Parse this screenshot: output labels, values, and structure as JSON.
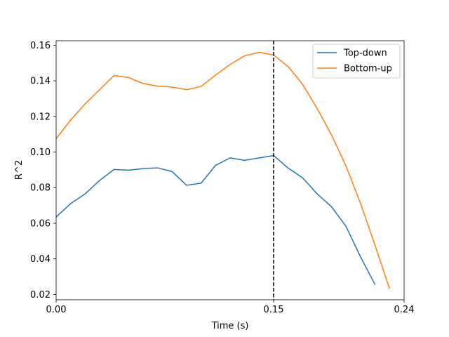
{
  "chart_data": {
    "type": "line",
    "title": "",
    "xlabel": "Time (s)",
    "ylabel": "R^2",
    "xlim": [
      0.0,
      0.24
    ],
    "ylim": [
      0.017,
      0.1625
    ],
    "xticks": [
      0.0,
      0.15,
      0.24
    ],
    "xtick_labels": [
      "0.00",
      "0.15",
      "0.24"
    ],
    "yticks": [
      0.02,
      0.04,
      0.06,
      0.08,
      0.1,
      0.12,
      0.14,
      0.16
    ],
    "ytick_labels": [
      "0.02",
      "0.04",
      "0.06",
      "0.08",
      "0.10",
      "0.12",
      "0.14",
      "0.16"
    ],
    "grid": false,
    "legend_position": "top-right",
    "vline": {
      "x": 0.15,
      "style": "dashed",
      "color": "#000000"
    },
    "series": [
      {
        "name": "Top-down",
        "color": "#1f77b4",
        "x": [
          0.0,
          0.01,
          0.02,
          0.03,
          0.04,
          0.05,
          0.06,
          0.07,
          0.08,
          0.09,
          0.1,
          0.11,
          0.12,
          0.13,
          0.14,
          0.15,
          0.16,
          0.17,
          0.18,
          0.19,
          0.2,
          0.21,
          0.22
        ],
        "y": [
          0.0635,
          0.071,
          0.0765,
          0.084,
          0.0902,
          0.0898,
          0.0907,
          0.0911,
          0.089,
          0.0813,
          0.0825,
          0.0925,
          0.0967,
          0.0953,
          0.0967,
          0.098,
          0.091,
          0.0855,
          0.0765,
          0.0692,
          0.0582,
          0.041,
          0.0255
        ]
      },
      {
        "name": "Bottom-up",
        "color": "#ff7f0e",
        "x": [
          0.0,
          0.01,
          0.02,
          0.03,
          0.04,
          0.05,
          0.06,
          0.07,
          0.08,
          0.09,
          0.1,
          0.11,
          0.12,
          0.13,
          0.14,
          0.15,
          0.16,
          0.17,
          0.18,
          0.19,
          0.2,
          0.21,
          0.22,
          0.23
        ],
        "y": [
          0.1075,
          0.118,
          0.127,
          0.135,
          0.143,
          0.1418,
          0.1385,
          0.137,
          0.1365,
          0.135,
          0.1368,
          0.1432,
          0.1492,
          0.154,
          0.156,
          0.1545,
          0.148,
          0.138,
          0.1245,
          0.1095,
          0.092,
          0.071,
          0.0475,
          0.0232
        ]
      }
    ]
  }
}
